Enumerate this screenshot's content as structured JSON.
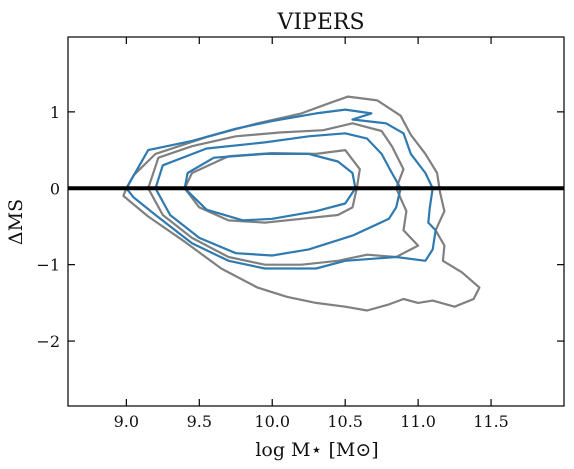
{
  "chart_data": {
    "type": "line",
    "title": "VIPERS",
    "xlabel": "log M⋆ [M⊙]",
    "ylabel": "ΔMS",
    "xlim": [
      8.6,
      12.0
    ],
    "ylim": [
      -2.85,
      1.98
    ],
    "x_ticks": [
      9.0,
      9.5,
      10.0,
      10.5,
      11.0,
      11.5
    ],
    "x_tick_labels": [
      "9.0",
      "9.5",
      "10.0",
      "10.5",
      "11.0",
      "11.5"
    ],
    "y_ticks": [
      1,
      0,
      -1,
      -2
    ],
    "y_tick_labels": [
      "1",
      "0",
      "−1",
      "−2"
    ],
    "grid": false,
    "colors": {
      "gray": "#808080",
      "blue": "#2f7ab0",
      "reference_line": "#000000"
    },
    "reference_line": {
      "orientation": "horizontal",
      "y": 0.0
    },
    "series": [
      {
        "color": "gray",
        "points": [
          [
            9.0,
            0.0
          ],
          [
            9.05,
            0.17
          ],
          [
            9.2,
            0.45
          ],
          [
            9.55,
            0.67
          ],
          [
            9.9,
            0.85
          ],
          [
            10.2,
            0.98
          ],
          [
            10.4,
            1.12
          ],
          [
            10.52,
            1.2
          ],
          [
            10.72,
            1.15
          ],
          [
            10.88,
            0.95
          ],
          [
            10.95,
            0.7
          ],
          [
            11.05,
            0.45
          ],
          [
            11.13,
            0.2
          ],
          [
            11.15,
            -0.05
          ],
          [
            11.18,
            -0.3
          ],
          [
            11.12,
            -0.55
          ],
          [
            11.18,
            -0.75
          ],
          [
            11.17,
            -0.95
          ],
          [
            11.3,
            -1.1
          ],
          [
            11.42,
            -1.3
          ],
          [
            11.38,
            -1.45
          ],
          [
            11.25,
            -1.55
          ],
          [
            11.1,
            -1.47
          ],
          [
            11.0,
            -1.5
          ],
          [
            10.9,
            -1.45
          ],
          [
            10.8,
            -1.52
          ],
          [
            10.65,
            -1.6
          ],
          [
            10.5,
            -1.55
          ],
          [
            10.3,
            -1.5
          ],
          [
            10.1,
            -1.42
          ],
          [
            9.9,
            -1.3
          ],
          [
            9.65,
            -1.05
          ],
          [
            9.4,
            -0.7
          ],
          [
            9.15,
            -0.37
          ],
          [
            8.98,
            -0.1
          ],
          [
            9.0,
            0.0
          ]
        ]
      },
      {
        "color": "gray",
        "points": [
          [
            9.15,
            0.0
          ],
          [
            9.22,
            0.4
          ],
          [
            9.45,
            0.55
          ],
          [
            9.75,
            0.68
          ],
          [
            10.05,
            0.73
          ],
          [
            10.35,
            0.76
          ],
          [
            10.55,
            0.85
          ],
          [
            10.75,
            0.75
          ],
          [
            10.82,
            0.55
          ],
          [
            10.9,
            0.25
          ],
          [
            10.85,
            0.0
          ],
          [
            10.92,
            -0.3
          ],
          [
            10.9,
            -0.55
          ],
          [
            11.0,
            -0.75
          ],
          [
            10.85,
            -0.9
          ],
          [
            10.65,
            -0.87
          ],
          [
            10.45,
            -0.95
          ],
          [
            10.2,
            -1.0
          ],
          [
            9.95,
            -1.0
          ],
          [
            9.7,
            -0.9
          ],
          [
            9.45,
            -0.65
          ],
          [
            9.25,
            -0.35
          ],
          [
            9.15,
            0.0
          ]
        ]
      },
      {
        "color": "gray",
        "points": [
          [
            9.4,
            0.0
          ],
          [
            9.45,
            0.2
          ],
          [
            9.7,
            0.42
          ],
          [
            10.0,
            0.46
          ],
          [
            10.3,
            0.45
          ],
          [
            10.5,
            0.5
          ],
          [
            10.6,
            0.25
          ],
          [
            10.58,
            0.0
          ],
          [
            10.55,
            -0.25
          ],
          [
            10.45,
            -0.35
          ],
          [
            10.2,
            -0.4
          ],
          [
            9.95,
            -0.45
          ],
          [
            9.7,
            -0.42
          ],
          [
            9.5,
            -0.25
          ],
          [
            9.4,
            0.0
          ]
        ]
      },
      {
        "color": "blue",
        "points": [
          [
            9.0,
            0.0
          ],
          [
            9.15,
            0.5
          ],
          [
            9.45,
            0.62
          ],
          [
            9.75,
            0.78
          ],
          [
            10.0,
            0.88
          ],
          [
            10.3,
            0.98
          ],
          [
            10.5,
            1.03
          ],
          [
            10.68,
            0.98
          ],
          [
            10.55,
            0.9
          ],
          [
            10.78,
            0.85
          ],
          [
            10.9,
            0.72
          ],
          [
            10.95,
            0.45
          ],
          [
            11.05,
            0.2
          ],
          [
            11.1,
            0.0
          ],
          [
            11.08,
            -0.25
          ],
          [
            11.07,
            -0.45
          ],
          [
            11.12,
            -0.55
          ],
          [
            11.1,
            -0.8
          ],
          [
            11.05,
            -0.95
          ],
          [
            10.85,
            -0.9
          ],
          [
            10.5,
            -0.95
          ],
          [
            10.3,
            -1.05
          ],
          [
            9.95,
            -1.05
          ],
          [
            9.7,
            -0.95
          ],
          [
            9.45,
            -0.72
          ],
          [
            9.2,
            -0.35
          ],
          [
            9.05,
            -0.12
          ],
          [
            9.0,
            0.0
          ]
        ]
      },
      {
        "color": "blue",
        "points": [
          [
            9.2,
            0.0
          ],
          [
            9.25,
            0.3
          ],
          [
            9.55,
            0.52
          ],
          [
            9.95,
            0.6
          ],
          [
            10.25,
            0.68
          ],
          [
            10.5,
            0.72
          ],
          [
            10.65,
            0.65
          ],
          [
            10.75,
            0.45
          ],
          [
            10.82,
            0.2
          ],
          [
            10.88,
            0.0
          ],
          [
            10.85,
            -0.25
          ],
          [
            10.8,
            -0.4
          ],
          [
            10.55,
            -0.62
          ],
          [
            10.25,
            -0.8
          ],
          [
            10.0,
            -0.88
          ],
          [
            9.75,
            -0.85
          ],
          [
            9.5,
            -0.65
          ],
          [
            9.3,
            -0.35
          ],
          [
            9.2,
            0.0
          ]
        ]
      },
      {
        "color": "blue",
        "points": [
          [
            9.4,
            0.0
          ],
          [
            9.42,
            0.2
          ],
          [
            9.6,
            0.4
          ],
          [
            9.95,
            0.45
          ],
          [
            10.25,
            0.45
          ],
          [
            10.45,
            0.35
          ],
          [
            10.55,
            0.2
          ],
          [
            10.57,
            0.0
          ],
          [
            10.5,
            -0.2
          ],
          [
            10.3,
            -0.3
          ],
          [
            10.0,
            -0.4
          ],
          [
            9.8,
            -0.42
          ],
          [
            9.55,
            -0.28
          ],
          [
            9.4,
            0.0
          ]
        ]
      }
    ]
  }
}
